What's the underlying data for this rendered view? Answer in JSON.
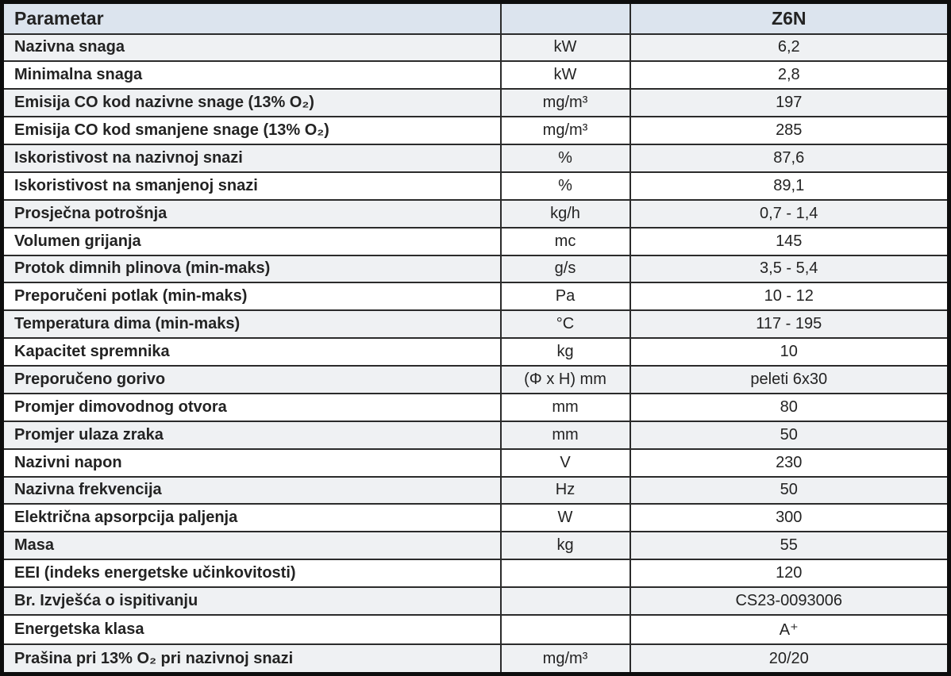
{
  "colors": {
    "header_bg": "#dce4ee",
    "stripe_bg": "#eff1f3",
    "row_bg": "#ffffff",
    "grid_border": "#2b2b2b",
    "outer_border": "#0d0d0d",
    "text": "#232323"
  },
  "table": {
    "columns": {
      "parameter": "Parametar",
      "unit": "",
      "model": "Z6N"
    },
    "rows": [
      {
        "parameter": "Nazivna snaga",
        "unit": "kW",
        "value": "6,2"
      },
      {
        "parameter": "Minimalna snaga",
        "unit": "kW",
        "value": "2,8"
      },
      {
        "parameter": "Emisija CO kod nazivne snage (13% O₂)",
        "unit": "mg/m³",
        "value": "197"
      },
      {
        "parameter": "Emisija CO kod smanjene snage (13% O₂)",
        "unit": "mg/m³",
        "value": "285"
      },
      {
        "parameter": "Iskoristivost na nazivnoj snazi",
        "unit": "%",
        "value": "87,6"
      },
      {
        "parameter": "Iskoristivost na smanjenoj snazi",
        "unit": "%",
        "value": "89,1"
      },
      {
        "parameter": "Prosječna potrošnja",
        "unit": "kg/h",
        "value": "0,7 - 1,4"
      },
      {
        "parameter": "Volumen grijanja",
        "unit": "mc",
        "value": "145"
      },
      {
        "parameter": "Protok dimnih plinova (min-maks)",
        "unit": "g/s",
        "value": "3,5 - 5,4"
      },
      {
        "parameter": "Preporučeni potlak (min-maks)",
        "unit": "Pa",
        "value": "10 - 12"
      },
      {
        "parameter": "Temperatura dima (min-maks)",
        "unit": "°C",
        "value": "117 - 195"
      },
      {
        "parameter": "Kapacitet spremnika",
        "unit": "kg",
        "value": "10"
      },
      {
        "parameter": "Preporučeno gorivo",
        "unit": "(Φ x H) mm",
        "value": "peleti 6x30"
      },
      {
        "parameter": "Promjer dimovodnog otvora",
        "unit": "mm",
        "value": "80"
      },
      {
        "parameter": "Promjer ulaza zraka",
        "unit": "mm",
        "value": "50"
      },
      {
        "parameter": "Nazivni napon",
        "unit": "V",
        "value": "230"
      },
      {
        "parameter": "Nazivna frekvencija",
        "unit": "Hz",
        "value": "50"
      },
      {
        "parameter": "Električna apsorpcija paljenja",
        "unit": "W",
        "value": "300"
      },
      {
        "parameter": "Masa",
        "unit": "kg",
        "value": "55"
      },
      {
        "parameter": "EEI (indeks energetske učinkovitosti)",
        "unit": "",
        "value": "120"
      },
      {
        "parameter": "Br. Izvješća o ispitivanju",
        "unit": "",
        "value": "CS23-0093006"
      },
      {
        "parameter": "Energetska klasa",
        "unit": "",
        "value": "A⁺"
      },
      {
        "parameter": "Prašina pri 13% O₂ pri nazivnoj snazi",
        "unit": "mg/m³",
        "value": "20/20"
      }
    ]
  }
}
